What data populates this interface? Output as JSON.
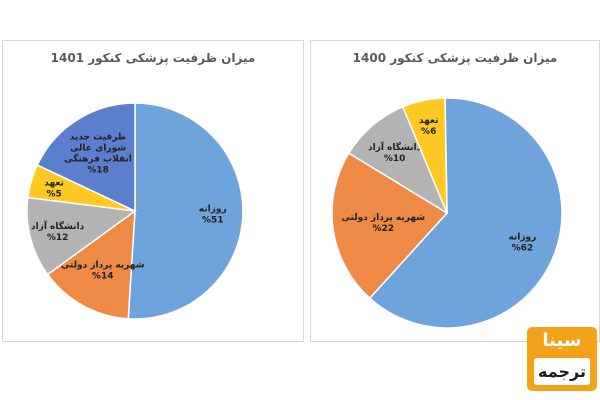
{
  "chart_data": [
    {
      "type": "pie",
      "title": "میزان ظرفیت پزشکی کنکور 1401",
      "slices": [
        {
          "label": [
            "روزانه"
          ],
          "pct_label": "%51",
          "value": 51,
          "color": "#6fa3dc",
          "label_color": "#222222"
        },
        {
          "label": [
            "شهریه پرداز دولتی"
          ],
          "pct_label": "%14",
          "value": 14,
          "color": "#ee8a45",
          "label_color": "#222222"
        },
        {
          "label": [
            "دانشگاه آزاد"
          ],
          "pct_label": "%12",
          "value": 12,
          "color": "#b3b3b3",
          "label_color": "#222222"
        },
        {
          "label": [
            "تعهد"
          ],
          "pct_label": "%5",
          "value": 5,
          "color": "#ffc924",
          "label_color": "#222222"
        },
        {
          "label": [
            "ظرفیت جدید",
            "شورای عالی",
            "انقلاب فرهنگی"
          ],
          "pct_label": "%18",
          "value": 18,
          "color": "#5b7fcc",
          "label_color": "#222222"
        }
      ]
    },
    {
      "type": "pie",
      "title": "میزان ظرفیت پزشکی کنکور 1400",
      "slices": [
        {
          "label": [
            "روزانه"
          ],
          "pct_label": "%62",
          "value": 62,
          "color": "#6fa3dc",
          "label_color": "#222222"
        },
        {
          "label": [
            "شهریه پرداز دولتی"
          ],
          "pct_label": "%22",
          "value": 22,
          "color": "#ee8a45",
          "label_color": "#222222"
        },
        {
          "label": [
            "دانشگاه آزاد"
          ],
          "pct_label": "%10",
          "value": 10,
          "color": "#b3b3b3",
          "label_color": "#222222"
        },
        {
          "label": [
            "تعهد"
          ],
          "pct_label": "%6",
          "value": 6,
          "color": "#ffc924",
          "label_color": "#222222"
        }
      ]
    }
  ],
  "logo": {
    "top_text": "سینا",
    "bottom_text": "ترجمه",
    "color": "#f4a21c"
  }
}
